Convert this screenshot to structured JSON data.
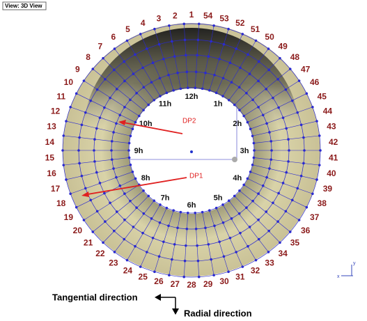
{
  "view_label": "View: 3D View",
  "segment_labels": [
    "1",
    "2",
    "3",
    "4",
    "5",
    "6",
    "7",
    "8",
    "9",
    "10",
    "11",
    "12",
    "13",
    "14",
    "15",
    "16",
    "17",
    "18",
    "19",
    "20",
    "21",
    "22",
    "23",
    "24",
    "25",
    "26",
    "27",
    "28",
    "29",
    "30",
    "31",
    "32",
    "33",
    "34",
    "35",
    "36",
    "37",
    "38",
    "39",
    "40",
    "41",
    "42",
    "43",
    "44",
    "45",
    "46",
    "47",
    "48",
    "49",
    "50",
    "51",
    "52",
    "53",
    "54"
  ],
  "clock_labels": [
    "1h",
    "2h",
    "3h",
    "4h",
    "5h",
    "6h",
    "7h",
    "8h",
    "9h",
    "10h",
    "11h",
    "12h"
  ],
  "annotations": {
    "dp1": "DP1",
    "dp2": "DP2"
  },
  "directions": {
    "tangential": "Tangential direction",
    "radial": "Radial direction"
  },
  "axis_icon": {
    "y": "y",
    "x": "x"
  }
}
